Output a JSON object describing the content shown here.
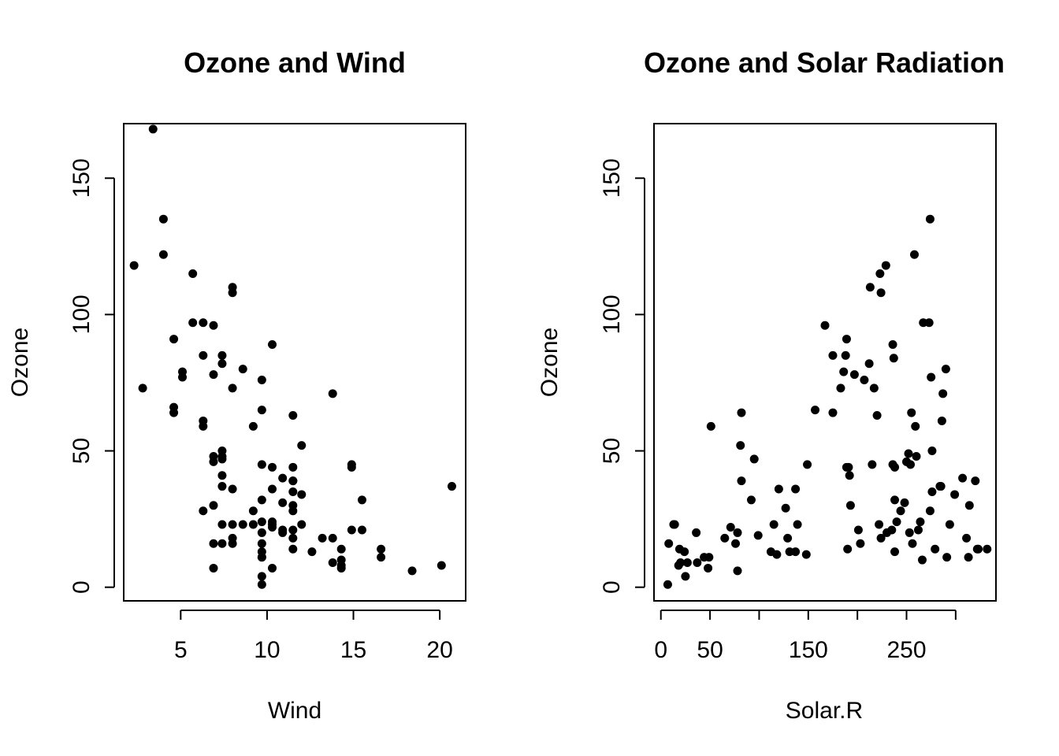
{
  "chart_data": [
    {
      "type": "scatter",
      "title": "Ozone and Wind",
      "xlabel": "Wind",
      "ylabel": "Ozone",
      "xlim": [
        1.7,
        21.5
      ],
      "ylim": [
        -5,
        170
      ],
      "xticks": [
        5,
        10,
        15,
        20
      ],
      "yticks": [
        0,
        50,
        100,
        150
      ],
      "grid": false,
      "marker_color": "#000000",
      "x": [
        3.4,
        4.0,
        4.0,
        2.3,
        5.7,
        6.3,
        6.9,
        5.7,
        8.0,
        8.0,
        10.3,
        4.6,
        7.4,
        6.3,
        7.4,
        8.6,
        6.9,
        5.1,
        5.1,
        9.7,
        2.8,
        8.0,
        13.8,
        4.6,
        4.6,
        9.7,
        11.5,
        6.3,
        6.3,
        9.2,
        12.0,
        7.4,
        7.4,
        7.4,
        6.9,
        6.9,
        9.7,
        14.9,
        14.9,
        10.3,
        10.3,
        11.5,
        9.7,
        11.5,
        11.5,
        10.9,
        7.4,
        8.0,
        11.5,
        15.5,
        6.9,
        12.0,
        7.4,
        10.9,
        11.5,
        9.2,
        8.0,
        7.4,
        12.0,
        11.5,
        10.3,
        6.3,
        10.3,
        9.2,
        8.6,
        8.0,
        9.7,
        10.3,
        14.9,
        15.5,
        11.5,
        9.7,
        9.7,
        11.5,
        13.2,
        13.8,
        6.9,
        8.0,
        7.4,
        10.9,
        10.9,
        11.5,
        12.6,
        16.6,
        14.3,
        14.3,
        9.7,
        13.8,
        9.7,
        14.3,
        10.3,
        16.6,
        18.4,
        14.3,
        20.1,
        6.9,
        9.7,
        9.7,
        9.7,
        20.7
      ],
      "y": [
        168,
        135,
        122,
        118,
        115,
        97,
        96,
        97,
        110,
        108,
        89,
        91,
        85,
        85,
        82,
        80,
        78,
        79,
        77,
        76,
        73,
        73,
        71,
        66,
        64,
        65,
        63,
        61,
        59,
        59,
        52,
        50,
        47,
        48,
        48,
        46,
        45,
        45,
        44,
        44,
        36,
        44,
        32,
        39,
        39,
        40,
        41,
        36,
        35,
        32,
        30,
        34,
        37,
        31,
        30,
        28,
        23,
        23,
        23,
        28,
        23,
        28,
        24,
        23,
        23,
        18,
        24,
        22,
        21,
        21,
        21,
        20,
        16,
        18,
        18,
        18,
        16,
        16,
        16,
        21,
        20,
        14,
        13,
        14,
        14,
        10,
        13,
        9,
        11,
        7,
        7,
        11,
        6,
        8,
        8,
        7,
        4,
        1,
        11,
        37
      ]
    },
    {
      "type": "scatter",
      "title": "Ozone and Solar Radiation",
      "xlabel": "Solar.R",
      "ylabel": "Ozone",
      "xlim": [
        -7,
        341
      ],
      "ylim": [
        -5,
        170
      ],
      "xticks": [
        0,
        50,
        100,
        150,
        200,
        250,
        300
      ],
      "xticklabels": [
        "0",
        "50",
        "",
        "150",
        "",
        "250",
        ""
      ],
      "yticks": [
        0,
        50,
        100,
        150
      ],
      "grid": false,
      "marker_color": "#000000",
      "x": [
        7,
        13,
        19,
        24,
        36,
        44,
        48,
        8,
        18,
        20,
        25,
        14,
        27,
        37,
        49,
        51,
        65,
        71,
        76,
        78,
        78,
        81,
        82,
        82,
        92,
        95,
        99,
        112,
        115,
        118,
        120,
        127,
        129,
        131,
        137,
        137,
        139,
        148,
        149,
        157,
        167,
        175,
        175,
        183,
        186,
        188,
        189,
        189,
        190,
        191,
        192,
        193,
        197,
        201,
        203,
        207,
        212,
        213,
        215,
        217,
        220,
        222,
        223,
        224,
        224,
        229,
        230,
        235,
        236,
        236,
        237,
        238,
        238,
        238,
        240,
        244,
        248,
        250,
        252,
        253,
        254,
        255,
        256,
        258,
        259,
        260,
        262,
        264,
        266,
        267,
        273,
        274,
        274,
        275,
        276,
        276,
        279,
        284,
        285,
        286,
        287,
        290,
        291,
        294,
        299,
        307,
        311,
        313,
        314,
        320,
        322,
        323,
        332
      ],
      "y": [
        1,
        23,
        14,
        13,
        20,
        11,
        7,
        16,
        8,
        9,
        4,
        23,
        9,
        9,
        11,
        59,
        18,
        22,
        16,
        6,
        20,
        52,
        39,
        64,
        32,
        47,
        19,
        13,
        23,
        12,
        36,
        29,
        18,
        13,
        36,
        13,
        23,
        12,
        45,
        65,
        96,
        85,
        64,
        73,
        79,
        85,
        91,
        44,
        14,
        44,
        41,
        30,
        78,
        21,
        16,
        76,
        82,
        110,
        45,
        73,
        63,
        23,
        115,
        108,
        18,
        118,
        20,
        21,
        89,
        45,
        84,
        44,
        32,
        13,
        24,
        28,
        31,
        46,
        49,
        20,
        45,
        64,
        16,
        122,
        59,
        48,
        21,
        24,
        10,
        97,
        97,
        28,
        135,
        77,
        50,
        35,
        14,
        37,
        37,
        61,
        71,
        80,
        11,
        23,
        34,
        40,
        18,
        11,
        30,
        39,
        14,
        14,
        14
      ]
    }
  ]
}
